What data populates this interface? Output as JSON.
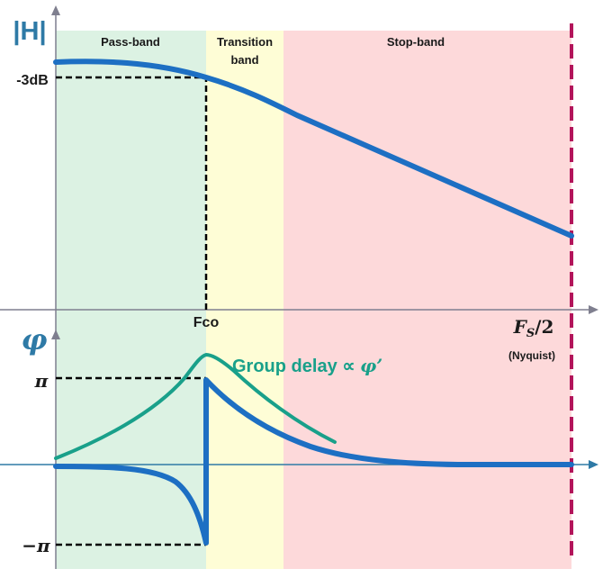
{
  "colors": {
    "passband_fill": "#dcf2e3",
    "transition_fill": "#fefdd6",
    "stopband_fill": "#fdd9da",
    "axis": "#7f7f8f",
    "main_curve": "#1d6fc3",
    "group_delay_curve": "#19a08a",
    "axis_label": "#2e7aa6",
    "nyquist_line": "#b3145a",
    "guide_line": "#000000",
    "text": "#1a1a1a"
  },
  "regions": {
    "passband_label": "Pass-band",
    "transition_label_line1": "Transition",
    "transition_label_line2": "band",
    "stopband_label": "Stop-band"
  },
  "magnitude_plot": {
    "axis_label": "|H|",
    "cutoff_level_label": "-3dB"
  },
  "frequency_axis": {
    "cutoff_label": "Fco",
    "nyquist_label_main": "F",
    "nyquist_label_sub": "S",
    "nyquist_label_suffix": "/2",
    "nyquist_note": "(Nyquist)"
  },
  "phase_plot": {
    "axis_label": "φ",
    "pi_label": "π",
    "minus_pi_label": "−π",
    "group_delay_label_text": "Group delay ∝ ",
    "group_delay_label_symbol": "φ’"
  },
  "icons": {
    "axis_arrow": "arrowhead-icon"
  }
}
